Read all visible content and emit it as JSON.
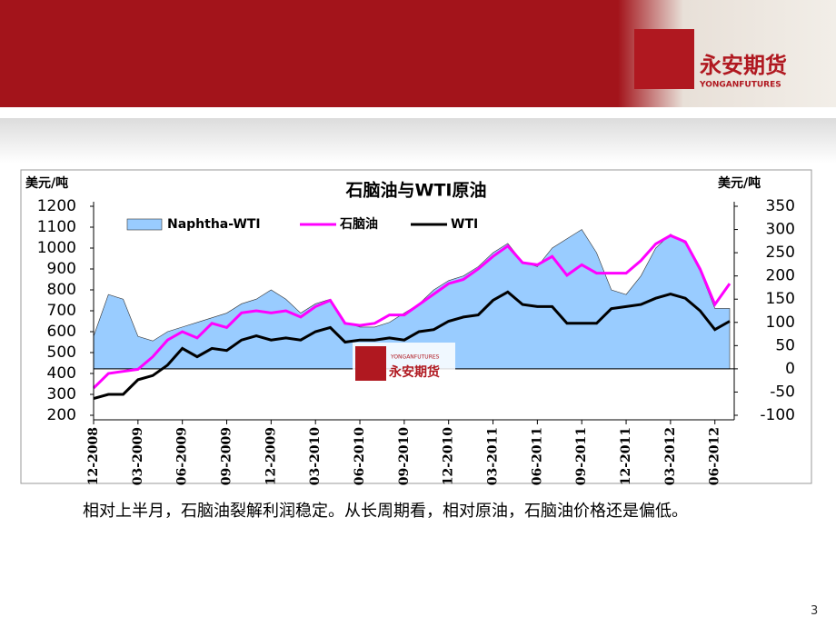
{
  "logo": {
    "name": "永安期货",
    "subname": "YONGANFUTURES"
  },
  "chart_data": {
    "type": "line",
    "title": "石脑油与WTI原油",
    "ylabel": "美元/吨",
    "y2label": "美元/吨",
    "categories": [
      "12-2008",
      null,
      null,
      "03-2009",
      null,
      null,
      "06-2009",
      null,
      null,
      "09-2009",
      null,
      null,
      "12-2009",
      null,
      null,
      "03-2010",
      null,
      null,
      "06-2010",
      null,
      null,
      "09-2010",
      null,
      null,
      "12-2010",
      null,
      null,
      "03-2011",
      null,
      null,
      "06-2011",
      null,
      null,
      "09-2011",
      null,
      null,
      "12-2011",
      null,
      null,
      "03-2012",
      null,
      null,
      "06-2012",
      null
    ],
    "series": [
      {
        "name": "Naphtha-WTI",
        "kind": "area",
        "axis": "y2",
        "color": "#99ccff",
        "values": [
          70,
          160,
          150,
          70,
          60,
          80,
          90,
          100,
          110,
          120,
          140,
          150,
          170,
          150,
          120,
          140,
          150,
          100,
          90,
          90,
          100,
          120,
          140,
          170,
          190,
          200,
          220,
          250,
          270,
          230,
          220,
          260,
          280,
          300,
          250,
          170,
          160,
          200,
          260,
          290,
          270,
          210,
          130,
          130
        ]
      },
      {
        "name": "石脑油",
        "kind": "line",
        "color": "#ff00ff",
        "values": [
          330,
          400,
          410,
          420,
          480,
          560,
          600,
          570,
          640,
          620,
          690,
          700,
          690,
          700,
          670,
          720,
          750,
          640,
          630,
          640,
          680,
          680,
          730,
          780,
          830,
          850,
          900,
          960,
          1010,
          930,
          920,
          960,
          870,
          920,
          880,
          880,
          880,
          940,
          1020,
          1060,
          1030,
          900,
          730,
          830
        ]
      },
      {
        "name": "WTI",
        "kind": "line",
        "color": "#000000",
        "values": [
          280,
          300,
          300,
          370,
          390,
          440,
          520,
          480,
          520,
          510,
          560,
          580,
          560,
          570,
          560,
          600,
          620,
          550,
          560,
          560,
          570,
          560,
          600,
          610,
          650,
          670,
          680,
          750,
          790,
          730,
          720,
          720,
          640,
          640,
          640,
          710,
          720,
          730,
          760,
          780,
          760,
          700,
          610,
          650
        ]
      }
    ],
    "ylim": [
      200,
      1200
    ],
    "yticks": [
      200,
      300,
      400,
      500,
      600,
      700,
      800,
      900,
      1000,
      1100,
      1200
    ],
    "y2lim": [
      -100,
      350
    ],
    "y2ticks": [
      -100,
      -50,
      0,
      50,
      100,
      150,
      200,
      250,
      300,
      350
    ]
  },
  "caption": "相对上半月，石脑油裂解利润稳定。从长周期看，相对原油，石脑油价格还是偏低。",
  "page_number": "3"
}
